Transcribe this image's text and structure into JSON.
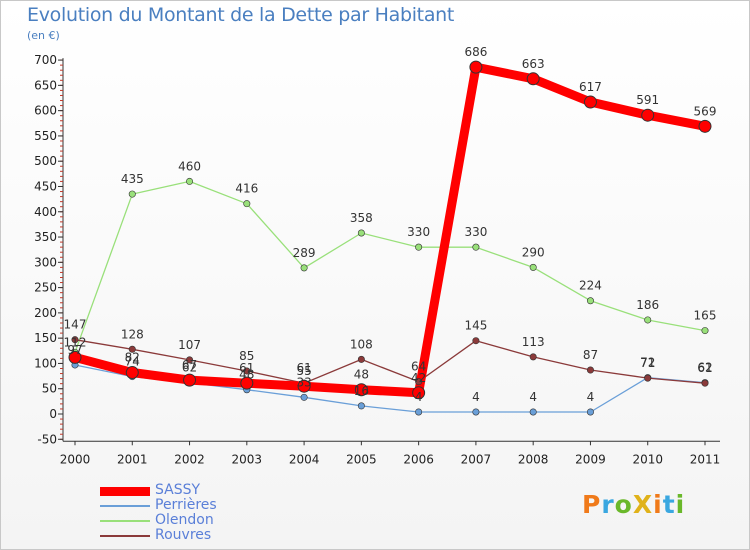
{
  "chart_data": {
    "type": "line",
    "title": "Evolution du Montant de la Dette par Habitant",
    "subtitle": "(en €)",
    "x": [
      "2000",
      "2001",
      "2002",
      "2003",
      "2004",
      "2005",
      "2006",
      "2007",
      "2008",
      "2009",
      "2010",
      "2011"
    ],
    "ylim": [
      -50,
      700
    ],
    "yticks": [
      -50,
      0,
      50,
      100,
      150,
      200,
      250,
      300,
      350,
      400,
      450,
      500,
      550,
      600,
      650,
      700
    ],
    "grid": false,
    "legend_position": "bottom-left",
    "series": [
      {
        "name": "SASSY",
        "color": "#ff0000",
        "values": [
          112,
          82,
          67,
          61,
          55,
          48,
          42,
          686,
          663,
          617,
          591,
          569
        ]
      },
      {
        "name": "Perrières",
        "color": "#6a9fd8",
        "values": [
          97,
          74,
          62,
          48,
          33,
          16,
          4,
          4,
          4,
          4,
          72,
          62
        ]
      },
      {
        "name": "Olendon",
        "color": "#99e07a",
        "values": [
          122,
          435,
          460,
          416,
          289,
          358,
          330,
          330,
          290,
          224,
          186,
          165
        ]
      },
      {
        "name": "Rouvres",
        "color": "#8b3a3a",
        "values": [
          147,
          128,
          107,
          85,
          61,
          108,
          64,
          145,
          113,
          87,
          71,
          61
        ]
      }
    ],
    "point_labels": [
      {
        "series": "SASSY",
        "values": [
          "112",
          "82",
          "67",
          "61",
          "55",
          "48",
          "42",
          "686",
          "663",
          "617",
          "591",
          "569"
        ]
      },
      {
        "series": "Perrières",
        "values": [
          "97",
          "74",
          "62",
          "48",
          "33",
          "16",
          "4",
          "4",
          "4",
          "4",
          "72",
          "62"
        ]
      },
      {
        "series": "Olendon",
        "values": [
          "",
          "435",
          "460",
          "416",
          "289",
          "358",
          "330",
          "330",
          "290",
          "224",
          "186",
          "165"
        ]
      },
      {
        "series": "Rouvres",
        "values": [
          "147",
          "128",
          "107",
          "85",
          "61",
          "108",
          "64",
          "145",
          "113",
          "87",
          "71",
          "61"
        ]
      }
    ]
  },
  "branding": {
    "logo_text": "ProXiti",
    "logo_colors": [
      "#f07a1a",
      "#3aa7e0",
      "#6ab82a",
      "#e0b21a",
      "#f07a1a",
      "#3aa7e0",
      "#6ab82a"
    ]
  }
}
